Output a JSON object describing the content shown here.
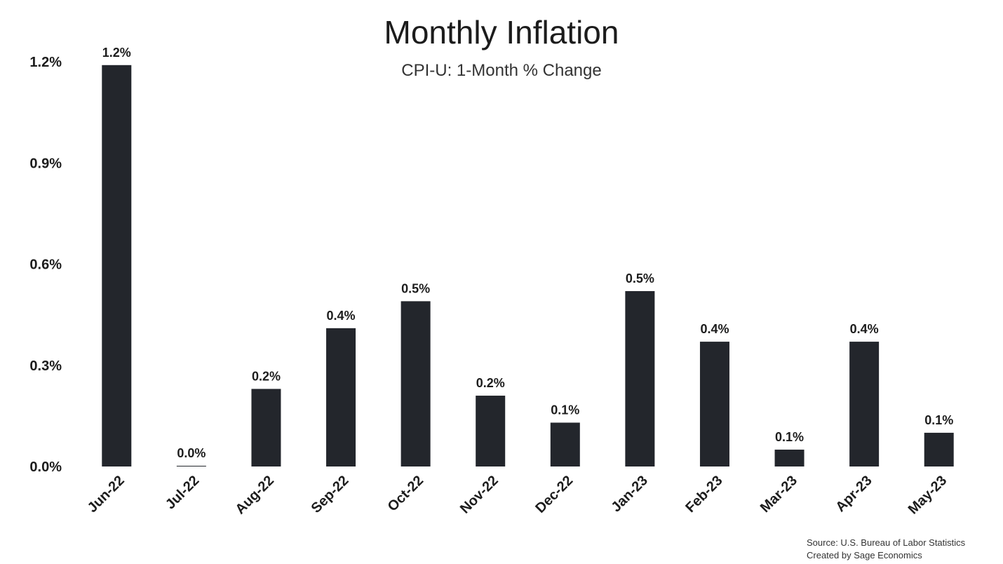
{
  "chart_data": {
    "type": "bar",
    "title": "Monthly Inflation",
    "subtitle": "CPI-U: 1-Month % Change",
    "xlabel": "",
    "ylabel": "",
    "categories": [
      "Jun-22",
      "Jul-22",
      "Aug-22",
      "Sep-22",
      "Oct-22",
      "Nov-22",
      "Dec-22",
      "Jan-23",
      "Feb-23",
      "Mar-23",
      "Apr-23",
      "May-23"
    ],
    "values": [
      1.19,
      0.0,
      0.23,
      0.41,
      0.49,
      0.21,
      0.13,
      0.52,
      0.37,
      0.05,
      0.37,
      0.1
    ],
    "data_labels": [
      "1.2%",
      "0.0%",
      "0.2%",
      "0.4%",
      "0.5%",
      "0.2%",
      "0.1%",
      "0.5%",
      "0.4%",
      "0.1%",
      "0.4%",
      "0.1%"
    ],
    "yticks": [
      0.0,
      0.3,
      0.6,
      0.9,
      1.2
    ],
    "ytick_labels": [
      "0.0%",
      "0.3%",
      "0.6%",
      "0.9%",
      "1.2%"
    ],
    "ylim": [
      0.0,
      1.2
    ],
    "grid": false,
    "legend": "none",
    "bar_color": "#23262c"
  },
  "footer": {
    "source": "Source: U.S. Bureau of Labor Statistics",
    "credit": "Created by Sage Economics"
  }
}
